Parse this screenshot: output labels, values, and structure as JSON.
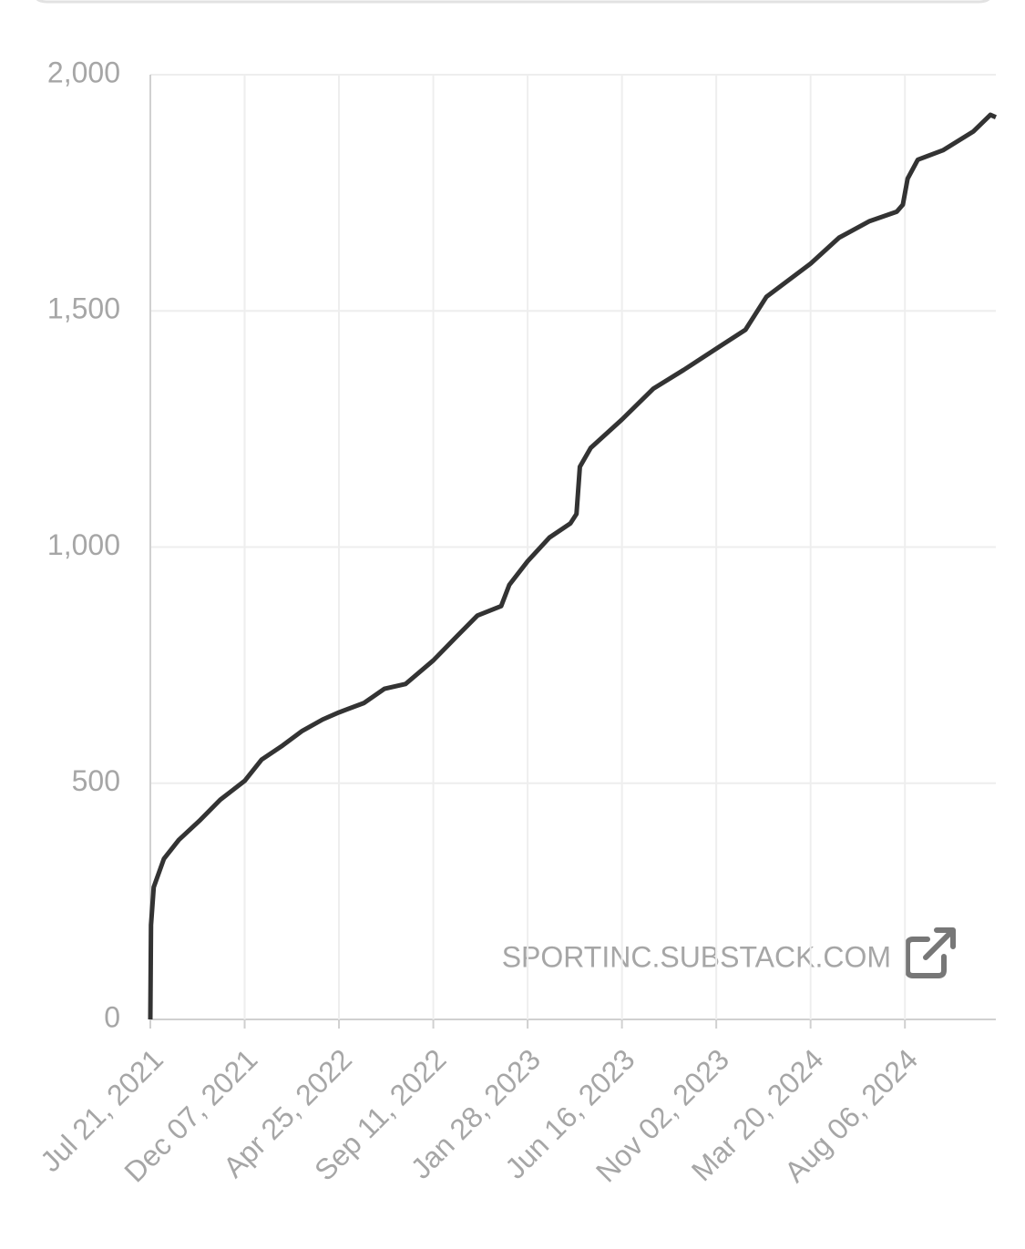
{
  "chart_data": {
    "type": "line",
    "x": [
      "2021-07-21",
      "2021-07-22",
      "2021-07-26",
      "2021-08-10",
      "2021-09-01",
      "2021-10-01",
      "2021-11-01",
      "2021-12-07",
      "2022-01-01",
      "2022-02-01",
      "2022-03-01",
      "2022-04-01",
      "2022-04-25",
      "2022-06-01",
      "2022-07-01",
      "2022-08-01",
      "2022-09-11",
      "2022-10-15",
      "2022-11-15",
      "2022-12-20",
      "2023-01-01",
      "2023-01-28",
      "2023-03-01",
      "2023-04-01",
      "2023-04-10",
      "2023-04-15",
      "2023-05-01",
      "2023-06-16",
      "2023-08-01",
      "2023-09-15",
      "2023-11-02",
      "2023-12-15",
      "2024-01-15",
      "2024-03-20",
      "2024-05-01",
      "2024-06-15",
      "2024-07-25",
      "2024-08-03",
      "2024-08-10",
      "2024-08-25",
      "2024-10-01",
      "2024-11-15",
      "2024-12-10",
      "2024-12-18"
    ],
    "series": [
      {
        "color": "#333333",
        "values": [
          0,
          200,
          280,
          340,
          380,
          420,
          465,
          505,
          550,
          580,
          610,
          635,
          650,
          670,
          700,
          710,
          760,
          810,
          855,
          875,
          920,
          970,
          1020,
          1050,
          1070,
          1170,
          1210,
          1270,
          1335,
          1375,
          1420,
          1460,
          1530,
          1600,
          1655,
          1690,
          1710,
          1725,
          1780,
          1820,
          1840,
          1880,
          1915,
          1910
        ]
      }
    ],
    "xlim": [
      "2021-07-21",
      "2024-12-18"
    ],
    "xticks": [
      {
        "value": "2021-07-21",
        "label": "Jul 21, 2021"
      },
      {
        "value": "2021-12-07",
        "label": "Dec 07, 2021"
      },
      {
        "value": "2022-04-25",
        "label": "Apr 25, 2022"
      },
      {
        "value": "2022-09-11",
        "label": "Sep 11, 2022"
      },
      {
        "value": "2023-01-28",
        "label": "Jan 28, 2023"
      },
      {
        "value": "2023-06-16",
        "label": "Jun 16, 2023"
      },
      {
        "value": "2023-11-02",
        "label": "Nov 02, 2023"
      },
      {
        "value": "2024-03-20",
        "label": "Mar 20, 2024"
      },
      {
        "value": "2024-08-06",
        "label": "Aug 06, 2024"
      }
    ],
    "ylim": [
      0,
      2000
    ],
    "yticks": [
      0,
      500,
      {
        "value": 1000,
        "label": "1,000"
      },
      {
        "value": 1500,
        "label": "1,500"
      },
      {
        "value": 2000,
        "label": "2,000"
      }
    ],
    "grid": true,
    "watermark": "SPORTINC.SUBSTACK.COM"
  }
}
